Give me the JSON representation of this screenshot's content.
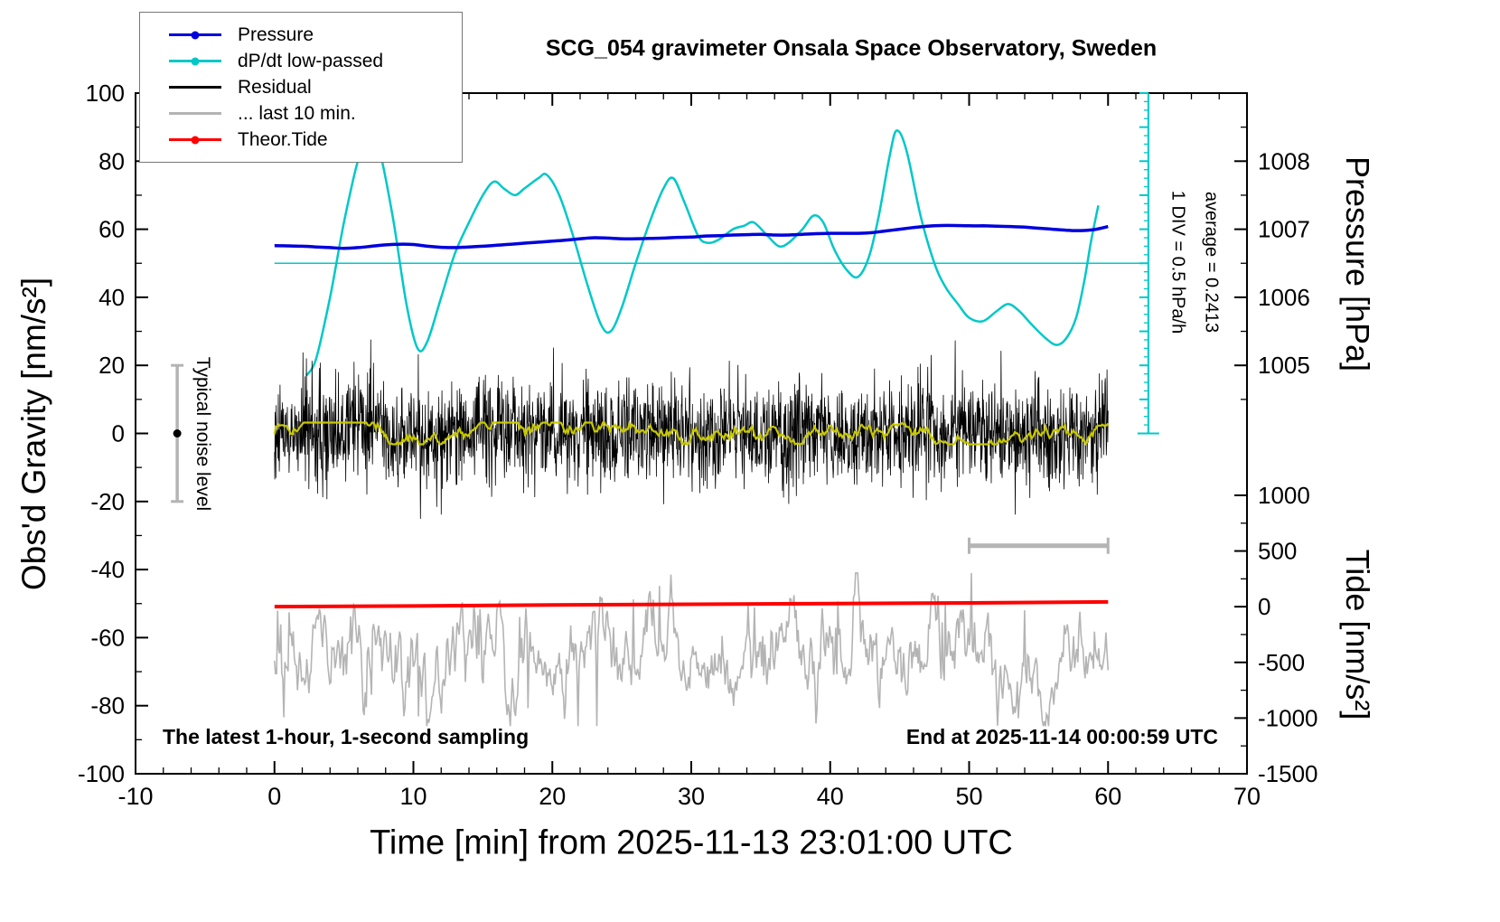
{
  "chart_data": {
    "type": "line",
    "title": "SCG_054 gravimeter Onsala Space Observatory, Sweden",
    "x_axis": {
      "label": "Time [min] from 2025-11-13 23:01:00 UTC",
      "min": -10,
      "max": 70,
      "major_step": 10,
      "minor_step": 2
    },
    "y_axis_left": {
      "label": "Obs'd Gravity [nm/s²]",
      "min": -100,
      "max": 100,
      "major_step": 20,
      "minor_step": 10
    },
    "y_axis_pressure": {
      "label": "Pressure [hPa]",
      "ticks": [
        1005,
        1006,
        1007,
        1008
      ],
      "minor_step": 0.5,
      "minor_range": [
        1004.5,
        1008.5
      ]
    },
    "y_axis_tide": {
      "label": "Tide [nm/s²]",
      "ticks": [
        1000,
        500,
        0,
        -500,
        -1000,
        -1500
      ],
      "minor_step": 250,
      "minor_range": [
        -1500,
        1000
      ]
    },
    "series": [
      {
        "name": "Pressure",
        "color": "#0000dd",
        "axis": "left-units (≈1006.5 hPa at 50)",
        "x_start": 0,
        "x_step": 1,
        "y": [
          55.2,
          55.1,
          55.0,
          54.8,
          54.6,
          54.4,
          54.6,
          55.0,
          55.4,
          55.6,
          55.5,
          55.0,
          54.7,
          54.6,
          54.8,
          55.0,
          55.3,
          55.6,
          55.9,
          56.2,
          56.5,
          56.8,
          57.2,
          57.5,
          57.4,
          57.2,
          57.2,
          57.3,
          57.4,
          57.6,
          57.7,
          58.0,
          58.1,
          58.3,
          58.4,
          58.5,
          58.3,
          58.3,
          58.5,
          58.7,
          58.8,
          58.8,
          58.8,
          59.0,
          59.5,
          60.0,
          60.5,
          60.9,
          61.1,
          61.1,
          61.0,
          61.0,
          60.9,
          60.8,
          60.6,
          60.3,
          60.0,
          59.7,
          59.6,
          59.9,
          60.8
        ]
      },
      {
        "name": "dP/dt low-passed",
        "color": "#00c8c8",
        "zero_line_at": 50,
        "x": [
          2.3,
          3,
          4,
          5,
          6,
          6.8,
          7.5,
          8.5,
          9.5,
          10.3,
          11,
          12,
          13,
          14,
          15,
          15.8,
          16.5,
          17.3,
          18,
          19,
          19.6,
          20.5,
          21.5,
          22.5,
          23.5,
          24.2,
          25,
          26,
          27,
          28,
          28.7,
          29.5,
          30.5,
          31.2,
          32,
          33,
          33.8,
          34.5,
          35.5,
          36.3,
          37,
          38,
          38.8,
          39.5,
          40.3,
          41.2,
          42,
          42.8,
          43.5,
          44.3,
          44.8,
          45.5,
          46.5,
          47.5,
          48.3,
          49.2,
          50,
          51,
          52,
          52.8,
          53.6,
          54.5,
          55.5,
          56.3,
          57,
          57.7,
          58.3,
          58.8,
          59.3
        ],
        "y": [
          17,
          22,
          40,
          62,
          80,
          87,
          84,
          64,
          38,
          25,
          27,
          40,
          53,
          62,
          70,
          74,
          72,
          70,
          72,
          75,
          76,
          70,
          58,
          44,
          32,
          30,
          37,
          50,
          62,
          72,
          75,
          68,
          58,
          56,
          57,
          60,
          61,
          62,
          58,
          55,
          56,
          60,
          64,
          62,
          54,
          48,
          46,
          52,
          64,
          82,
          89,
          83,
          64,
          50,
          43,
          38,
          34,
          33,
          36,
          38,
          36,
          32,
          28,
          26,
          28,
          34,
          45,
          57,
          67
        ]
      },
      {
        "name": "Theor.Tide",
        "color": "#ff0000",
        "x": [
          0,
          10,
          20,
          30,
          40,
          50,
          60
        ],
        "y": [
          -50.9,
          -50.7,
          -50.4,
          -50.2,
          -50.0,
          -49.8,
          -49.5
        ]
      },
      {
        "name": "Residual",
        "color": "#000000",
        "model": "random-noise",
        "seed": 1234567,
        "n_points": 2400,
        "x_range": [
          0,
          60
        ],
        "mean": 0,
        "std": 7.5,
        "clip": 28,
        "spike_prob": 0.012
      },
      {
        "name": "Residual smoothed",
        "color": "#c8c800",
        "model": "ar1-noise",
        "seed": 24601,
        "n_points": 600,
        "x_range": [
          0,
          60
        ],
        "base": 0,
        "ar": 0.95,
        "amp": 0.8,
        "clip": 3.2
      },
      {
        "name": "... last 10 min.",
        "color": "#b4b4b4",
        "model": "ar1-noise-spikes",
        "seed": 31415,
        "n_points": 800,
        "x_range": [
          0,
          60
        ],
        "base": -65,
        "ar": 0.8,
        "amp": 5.0,
        "clip_low": -86,
        "clip_high": -41,
        "spike_prob": 0.018,
        "spike_amp": 15
      }
    ],
    "annotations": {
      "noise_bar": {
        "x": -7,
        "y_from": -20,
        "y_to": 20,
        "center_dot": 0,
        "label": "Typical noise level"
      },
      "scale_bar": {
        "x_from": 50,
        "x_to": 60,
        "y": -33
      },
      "div_axis": {
        "x": 62.9,
        "y_from": 0,
        "y_to": 100,
        "minor_step": 2.5,
        "major_step": 10,
        "label": "1 DIV = 0.5 hPa/h",
        "average_label": "average = 0.2413"
      }
    }
  },
  "legend": {
    "items": [
      {
        "label": "Pressure",
        "color": "#0000dd",
        "dot": true
      },
      {
        "label": "dP/dt low-passed",
        "color": "#00c8c8",
        "dot": true
      },
      {
        "label": "Residual",
        "color": "#000000",
        "dot": false
      },
      {
        "label": "... last 10 min.",
        "color": "#b4b4b4",
        "dot": false
      },
      {
        "label": "Theor.Tide",
        "color": "#ff0000",
        "dot": true
      }
    ]
  },
  "notes": {
    "sampling": "The latest 1-hour, 1-second sampling",
    "end": "End at 2025-11-14 00:00:59 UTC"
  }
}
